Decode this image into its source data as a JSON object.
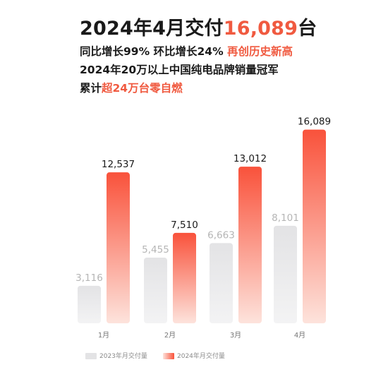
{
  "header": {
    "title_prefix": "2024年4月交付",
    "title_highlight": "16,089",
    "title_suffix": "台",
    "line1_text": "同比增长99% 环比增长24% ",
    "line1_highlight": "再创历史新高",
    "line2_text": "2024年20万以上中国纯电品牌销量冠军",
    "line3_prefix": "累计",
    "line3_highlight": "超24万台零自燃"
  },
  "colors": {
    "accent": "#f05a40",
    "bar_2024_top": "#f9523b",
    "bar_2024_bottom": "#fde3dc",
    "bar_2023_top": "#e3e3e5",
    "bar_2023_bottom": "#f3f3f4",
    "label_2023": "#b5b5b5",
    "label_2024": "#1a1a1a"
  },
  "chart_data": {
    "type": "bar",
    "categories": [
      "1月",
      "2月",
      "3月",
      "4月"
    ],
    "series": [
      {
        "name": "2023年月交付量",
        "values": [
          3116,
          5455,
          6663,
          8101
        ],
        "labels": [
          "3,116",
          "5,455",
          "6,663",
          "8,101"
        ]
      },
      {
        "name": "2024年月交付量",
        "values": [
          12537,
          7510,
          13012,
          16089
        ],
        "labels": [
          "12,537",
          "7,510",
          "13,012",
          "16,089"
        ]
      }
    ],
    "ylim": [
      0,
      18000
    ],
    "grid": false,
    "legend": "bottom-center"
  }
}
